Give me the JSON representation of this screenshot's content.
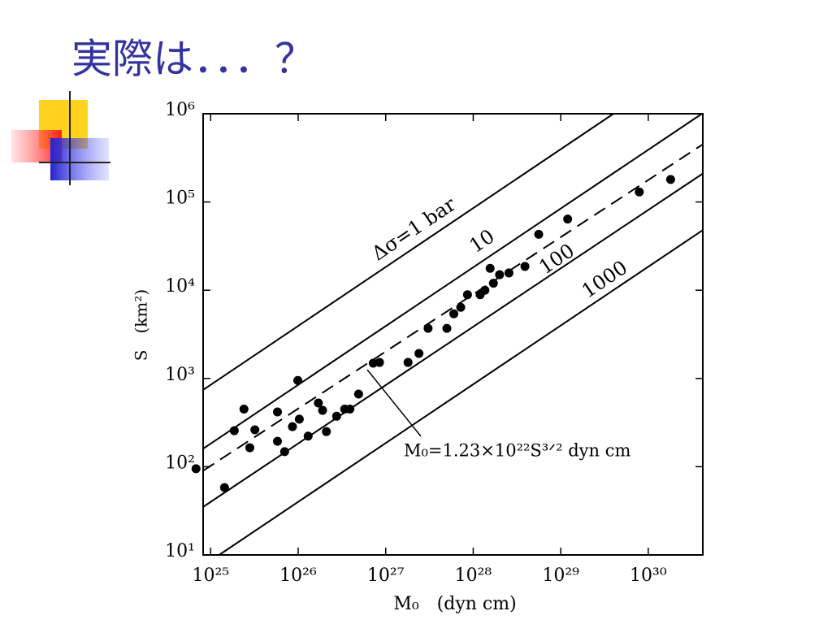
{
  "chart_data": {
    "type": "scatter",
    "title": "実際は．．．？",
    "xlabel": "M₀　(dyn cm)",
    "ylabel": "S　(km²)",
    "xlog": true,
    "ylog": true,
    "xlim": [
      8.2e+24,
      4.2e+30
    ],
    "ylim": [
      10,
      1000000
    ],
    "xticks": [
      {
        "value": 1e+25,
        "label": "10²⁵"
      },
      {
        "value": 1e+26,
        "label": "10²⁶"
      },
      {
        "value": 1e+27,
        "label": "10²⁷"
      },
      {
        "value": 1e+28,
        "label": "10²⁸"
      },
      {
        "value": 1e+29,
        "label": "10²⁹"
      },
      {
        "value": 1e+30,
        "label": "10³⁰"
      }
    ],
    "yticks": [
      {
        "value": 10,
        "label": "10¹"
      },
      {
        "value": 100,
        "label": "10²"
      },
      {
        "value": 1000,
        "label": "10³"
      },
      {
        "value": 10000,
        "label": "10⁴"
      },
      {
        "value": 100000,
        "label": "10⁵"
      },
      {
        "value": 1000000,
        "label": "10⁶"
      }
    ],
    "color": "#000000",
    "x": [
      6.8e+24,
      1.44e+25,
      1.86e+25,
      2.4e+25,
      2.8e+25,
      3.2e+25,
      5.8e+25,
      5.8e+25,
      7e+25,
      8.6e+25,
      1.03e+26,
      9.9e+25,
      1.3e+26,
      1.7e+26,
      2.1e+26,
      1.9e+26,
      2.75e+26,
      3.4e+26,
      3.9e+26,
      4.9e+26,
      7.2e+26,
      8.5e+26,
      1.8e+27,
      2.4e+27,
      3.05e+27,
      5e+27,
      6e+27,
      7.2e+27,
      8.6e+27,
      1.2e+28,
      1.36e+28,
      1.56e+28,
      1.7e+28,
      2e+28,
      2.56e+28,
      3.9e+28,
      5.6e+28,
      1.2e+29,
      7.9e+29,
      1.8e+30
    ],
    "y": [
      95,
      58,
      256,
      450,
      164,
      262,
      418,
      194,
      148,
      284,
      346,
      950,
      222,
      527,
      250,
      435,
      373,
      450,
      450,
      665,
      1490,
      1520,
      1520,
      1920,
      3700,
      3700,
      5400,
      6400,
      8900,
      8900,
      10000,
      17700,
      12000,
      15000,
      15700,
      18600,
      43000,
      64000,
      130000,
      180000
    ],
    "lines": [
      {
        "label": "Δσ=1 bar",
        "style": "solid",
        "x": [
          8.2e+24,
          4e+29
        ],
        "y": [
          742,
          1000000
        ]
      },
      {
        "label": "10",
        "style": "solid",
        "x": [
          8.2e+24,
          4.1e+30
        ],
        "y": [
          160,
          1000000
        ]
      },
      {
        "label": "100",
        "style": "solid",
        "x": [
          8.2e+24,
          4.2e+30
        ],
        "y": [
          35,
          210000
        ]
      },
      {
        "label": "1000",
        "style": "solid",
        "x": [
          1.25e+25,
          4.2e+30
        ],
        "y": [
          10,
          48000
        ]
      },
      {
        "style": "dashed",
        "x": [
          8.2e+24,
          4.2e+30
        ],
        "y": [
          90,
          450000
        ]
      }
    ],
    "annotation": "M₀=1.23×10²²S³ᐟ²  dyn cm"
  }
}
